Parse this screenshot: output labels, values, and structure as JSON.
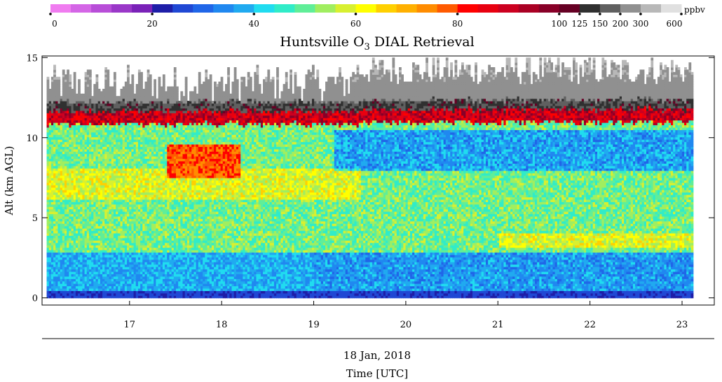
{
  "chart_data": {
    "type": "heatmap",
    "title_main": "Huntsville O",
    "title_sub": "3",
    "title_rest": " DIAL Retrieval",
    "ylabel": "Alt (km AGL)",
    "date_label": "18 Jan, 2018",
    "xlabel": "Time [UTC]",
    "colorbar_unit": "ppbv",
    "x_ticks": [
      "17",
      "18",
      "19",
      "20",
      "21",
      "22",
      "23"
    ],
    "x_tick_values": [
      17,
      18,
      19,
      20,
      21,
      22,
      23
    ],
    "xlim": [
      16.05,
      23.35
    ],
    "y_ticks": [
      "0",
      "5",
      "10",
      "15"
    ],
    "y_tick_values": [
      0,
      5,
      10,
      15
    ],
    "ylim": [
      -0.45,
      15.1
    ],
    "data_xrange": [
      16.1,
      23.12
    ],
    "data_yrange": [
      0,
      15
    ],
    "colorbar_labels": [
      "0",
      "20",
      "40",
      "60",
      "80",
      "100",
      "125",
      "150",
      "200",
      "300",
      "600"
    ],
    "colorbar_colors": [
      "#f07cf0",
      "#d466e6",
      "#b84ed8",
      "#9a38c8",
      "#7a22b8",
      "#1e1ea8",
      "#2048d4",
      "#2066e8",
      "#2088f0",
      "#20aaf0",
      "#20dcf0",
      "#30ecc8",
      "#60ee98",
      "#a0ee60",
      "#d8f030",
      "#ffff00",
      "#ffd000",
      "#ffb000",
      "#ff8c00",
      "#ff5a00",
      "#ff0000",
      "#e80010",
      "#cc0020",
      "#aa0024",
      "#880028",
      "#660024",
      "#303030",
      "#606060",
      "#909090",
      "#b8b8b8",
      "#e0e0e0"
    ],
    "summary": {
      "surface_layer_ppbv": 22,
      "boundary_layer_ppbv": 36,
      "free_troposphere_ppbv": 50,
      "enhanced_layer_ppbv": 78,
      "enhanced_layer_time": [
        17.4,
        18.2
      ],
      "enhanced_layer_alt": [
        7.5,
        9.5
      ],
      "tropopause_km": 11.3,
      "stratosphere_ppbv": 170
    }
  }
}
